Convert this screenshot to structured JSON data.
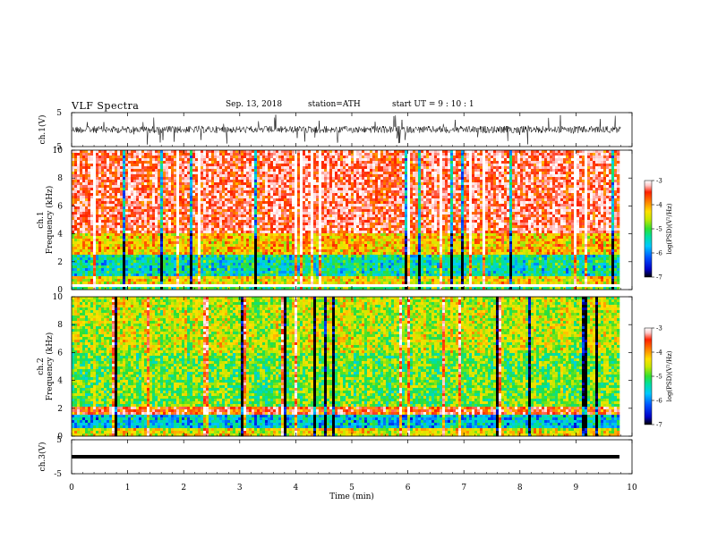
{
  "header": {
    "title": "VLF  Spectra",
    "date": "Sep. 13, 2018",
    "station": "station=ATH",
    "start": "start  UT  =    9  : 10 : 1"
  },
  "chart_data": [
    {
      "type": "line",
      "panel": "ch1-waveform",
      "ylabel": "ch.1(V)",
      "yticks": [
        "5",
        "-5"
      ],
      "ylim": [
        -5,
        5
      ],
      "x_range": [
        0,
        9.8
      ],
      "trace_color": "#000000"
    },
    {
      "type": "heatmap",
      "panel": "ch1-spectrogram",
      "ylabel_line1": "ch.1",
      "ylabel_line2": "Frequency  (kHz)",
      "yticks": [
        "0",
        "2",
        "4",
        "6",
        "8",
        "10"
      ],
      "ylim": [
        0,
        10
      ],
      "x_range": [
        0,
        9.8
      ],
      "colorbar": {
        "label": "log(PSD)(V²/Hz)",
        "ticks": [
          "-3",
          "-4",
          "-5",
          "-6",
          "-7"
        ],
        "range": [
          -7,
          -3
        ]
      }
    },
    {
      "type": "heatmap",
      "panel": "ch2-spectrogram",
      "ylabel_line1": "ch.2",
      "ylabel_line2": "Frequency  (kHz)",
      "yticks": [
        "0",
        "2",
        "4",
        "6",
        "8",
        "10"
      ],
      "ylim": [
        0,
        10
      ],
      "x_range": [
        0,
        9.8
      ],
      "colorbar": {
        "label": "log(PSD)(V²/Hz)",
        "ticks": [
          "-3",
          "-4",
          "-5",
          "-6",
          "-7"
        ],
        "range": [
          -7,
          -3
        ]
      }
    },
    {
      "type": "line",
      "panel": "ch3-waveform",
      "ylabel": "ch.3(V)",
      "yticks": [
        "5",
        "-5"
      ],
      "ylim": [
        -5,
        5
      ],
      "x_range": [
        0,
        9.8
      ],
      "trace_color": "#000000"
    }
  ],
  "xaxis": {
    "label": "Time  (min)",
    "ticks": [
      "0",
      "1",
      "2",
      "3",
      "4",
      "5",
      "6",
      "7",
      "8",
      "9",
      "10"
    ],
    "range": [
      0,
      10
    ]
  },
  "colors": {
    "colormap": [
      "#000000",
      "#0000c8",
      "#0050ff",
      "#00c8ff",
      "#00e0a0",
      "#30e030",
      "#c8e800",
      "#ffe000",
      "#ff8000",
      "#ff2000",
      "#ffc8c8",
      "#ffffff"
    ]
  }
}
